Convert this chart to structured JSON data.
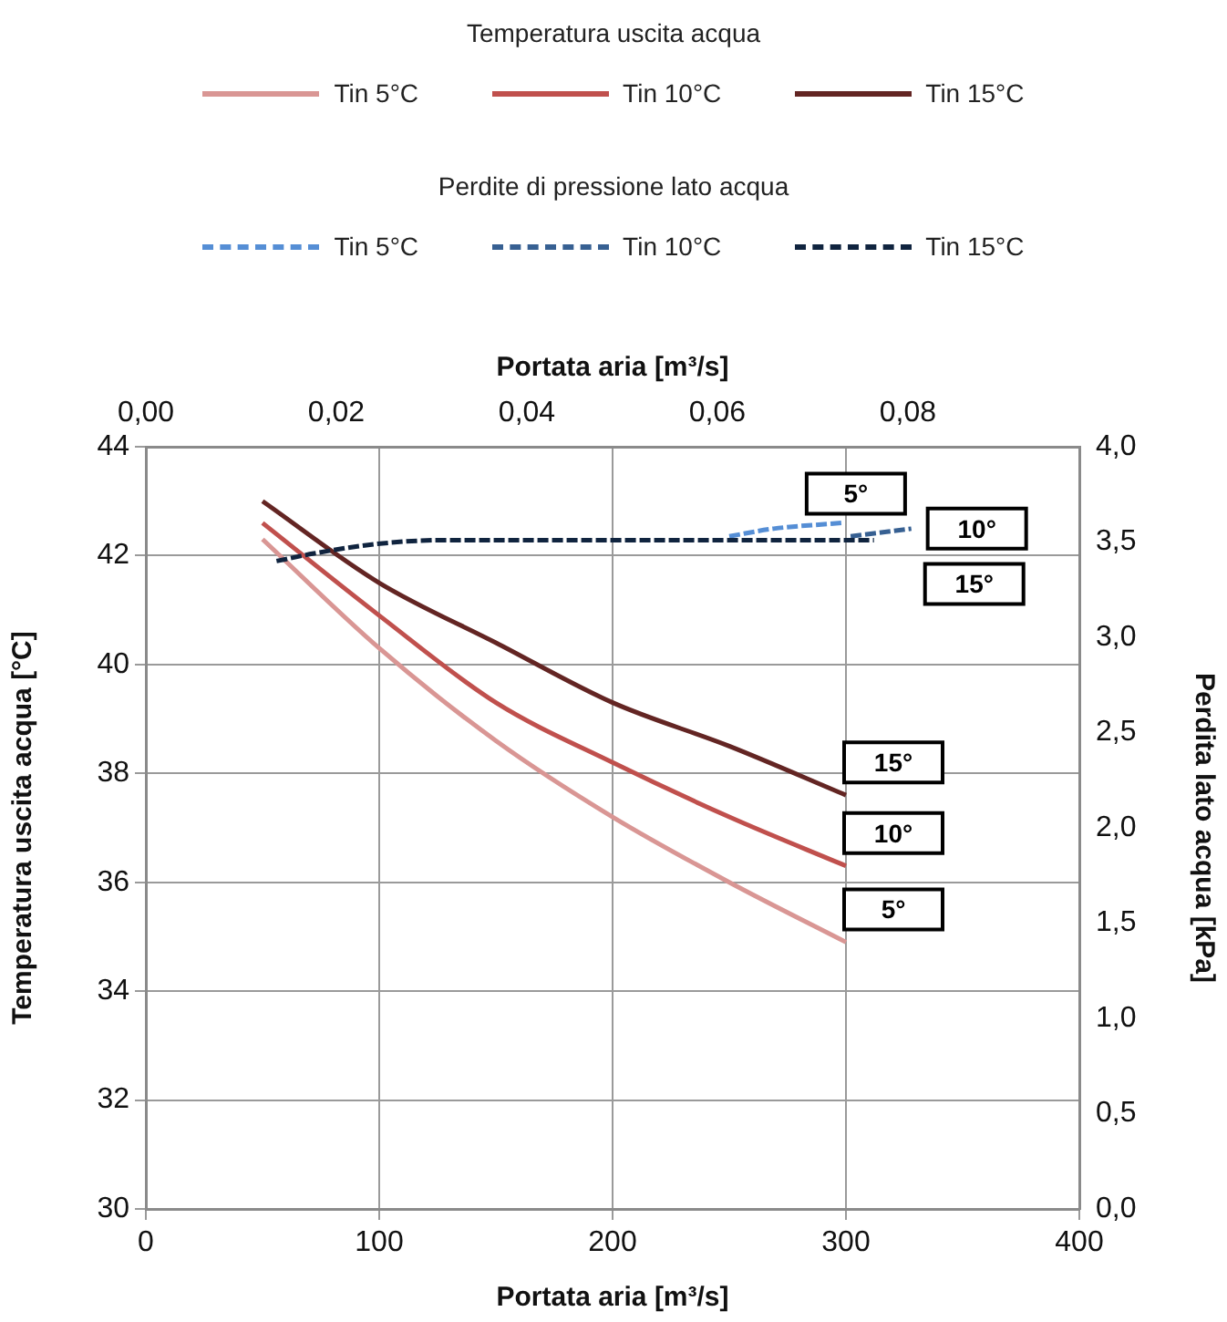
{
  "chart_data": {
    "type": "line",
    "legend": "top",
    "grid": true,
    "line_style": "solid",
    "marker": "none",
    "legend_title": [
      "Temperatura uscita acqua",
      "Perdite di pressione lato acqua"
    ],
    "xlabel": "Portata aria [m³/s]",
    "x2label": "Portata aria [m³/s]",
    "ylabel": "Temperatura uscita acqua [°C]",
    "y2label": "Perdita lato acqua [kPa]",
    "xlim": [
      0,
      400
    ],
    "xticks": [
      0,
      100,
      200,
      300,
      400
    ],
    "x2lim": [
      0,
      0.098
    ],
    "x2ticks": [
      {
        "value": 0,
        "label": "0,00"
      },
      {
        "value": 0.02,
        "label": "0,02"
      },
      {
        "value": 0.04,
        "label": "0,04"
      },
      {
        "value": 0.06,
        "label": "0,06"
      },
      {
        "value": 0.08,
        "label": "0,08"
      }
    ],
    "ylim": [
      30,
      44
    ],
    "yticks": [
      30,
      32,
      34,
      36,
      38,
      40,
      42,
      44
    ],
    "y2lim": [
      0,
      4
    ],
    "y2ticks": [
      {
        "value": 0,
        "label": "0,0"
      },
      {
        "value": 0.5,
        "label": "0,5"
      },
      {
        "value": 1,
        "label": "1,0"
      },
      {
        "value": 1.5,
        "label": "1,5"
      },
      {
        "value": 2,
        "label": "2,0"
      },
      {
        "value": 2.5,
        "label": "2,5"
      },
      {
        "value": 3,
        "label": "3,0"
      },
      {
        "value": 3.5,
        "label": "3,5"
      },
      {
        "value": 4,
        "label": "4,0"
      }
    ],
    "series": [
      {
        "name": "Tin 5°C",
        "color": "#d99694",
        "x": [
          50,
          100,
          150,
          200,
          250,
          300
        ],
        "values": [
          42.3,
          40.3,
          38.6,
          37.2,
          36.0,
          34.9
        ]
      },
      {
        "name": "Tin 10°C",
        "color": "#c0504d",
        "x": [
          50,
          100,
          150,
          200,
          250,
          300
        ],
        "values": [
          42.6,
          40.9,
          39.3,
          38.2,
          37.2,
          36.3
        ]
      },
      {
        "name": "Tin 15°C",
        "color": "#632523",
        "x": [
          50,
          100,
          150,
          200,
          250,
          300
        ],
        "values": [
          43.0,
          41.5,
          40.4,
          39.3,
          38.5,
          37.6
        ]
      },
      {
        "name": "Tin 5°C",
        "color": "#558ed5",
        "axis": "y2",
        "line_style": "dashed",
        "x": [
          250,
          269,
          298
        ],
        "values": [
          3.53,
          3.57,
          3.6
        ]
      },
      {
        "name": "Tin 10°C",
        "color": "#376092",
        "axis": "y2",
        "line_style": "dashed",
        "x": [
          302,
          328
        ],
        "values": [
          3.53,
          3.57
        ]
      },
      {
        "name": "Tin 15°C",
        "color": "#10243f",
        "axis": "y2",
        "line_style": "dashed",
        "x": [
          56,
          72,
          99,
          128,
          204,
          312
        ],
        "values": [
          3.4,
          3.44,
          3.49,
          3.51,
          3.51,
          3.51
        ]
      }
    ],
    "annotations": [
      "5°",
      "10°",
      "15°",
      "5°",
      "10°",
      "15°"
    ]
  }
}
